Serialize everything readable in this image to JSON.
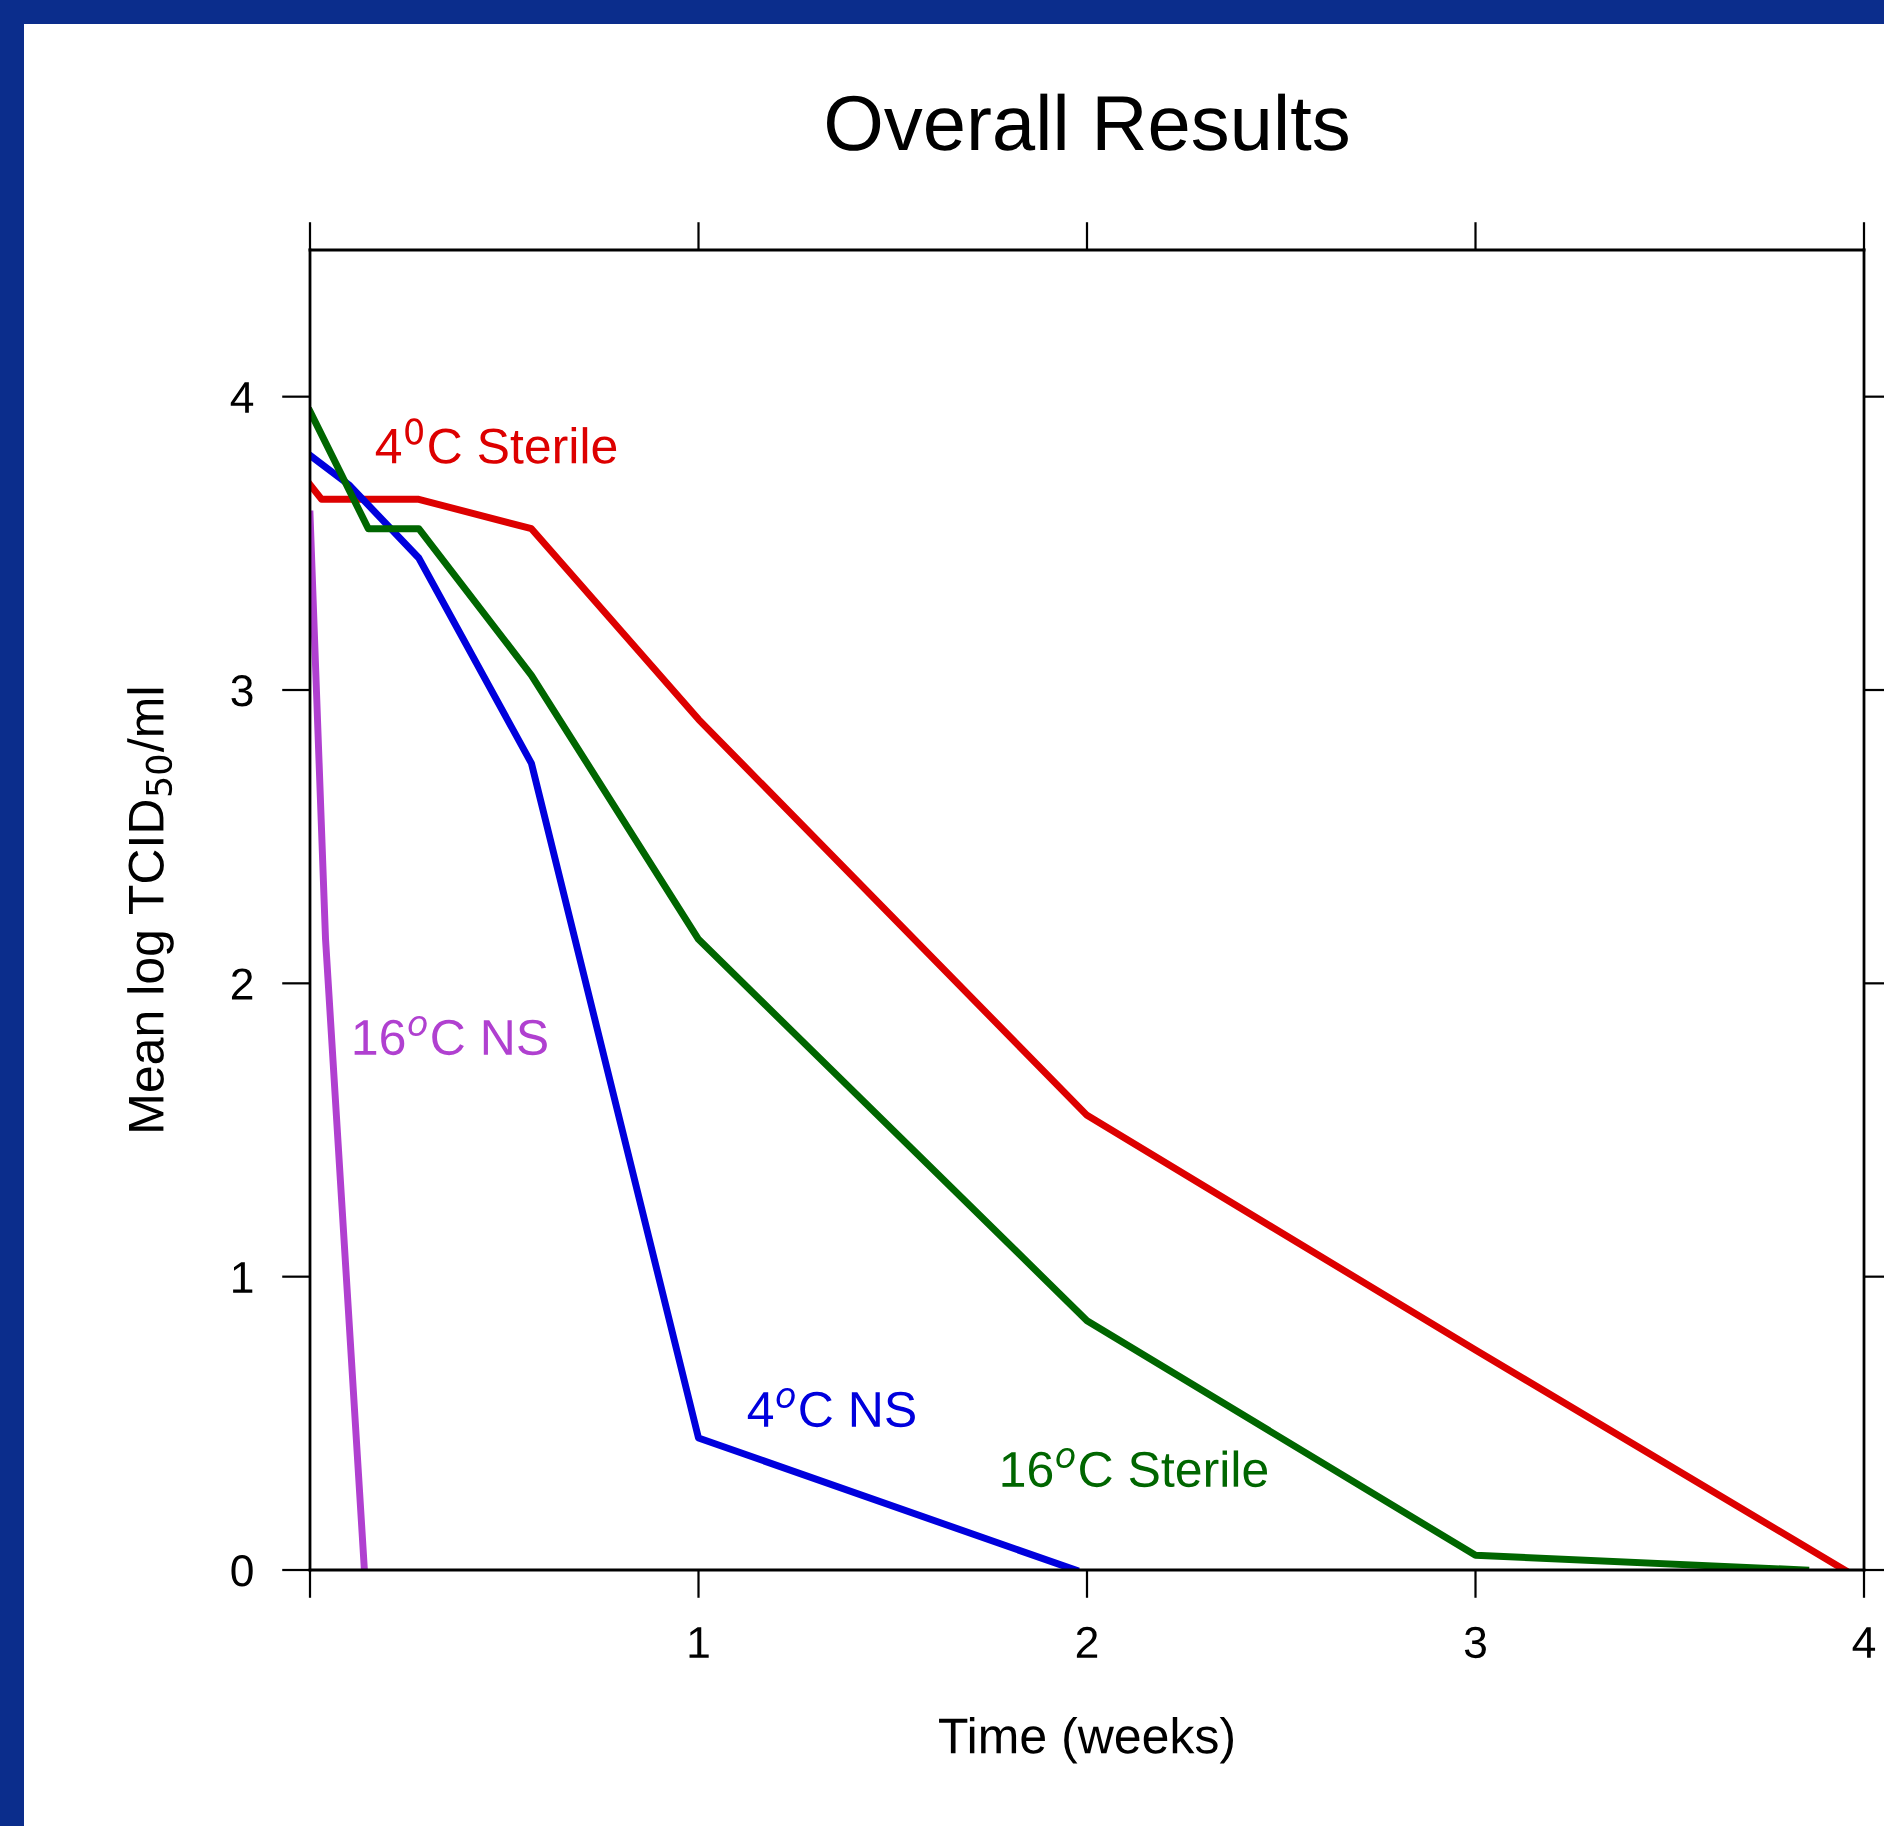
{
  "chart_data": {
    "type": "line",
    "title": "Overall Results",
    "xlabel": "Time (weeks)",
    "ylabel": "Mean log TCID$_{50}$/ml",
    "xlim": [
      0,
      4
    ],
    "ylim": [
      0,
      4.5
    ],
    "xticks": [
      {
        "value": 0,
        "label": null
      },
      1,
      2,
      3,
      4
    ],
    "yticks": [
      0,
      1,
      2,
      3,
      4
    ],
    "grid": false,
    "legend": false,
    "marker": "none",
    "line_style": "solid",
    "series": [
      {
        "name": "4$^{0}$C Sterile",
        "color": "#dd0000",
        "x": [
          0,
          0.03,
          0.28,
          0.57,
          1,
          2,
          3,
          3.95
        ],
        "values": [
          3.7,
          3.65,
          3.65,
          3.55,
          2.9,
          1.55,
          0.75,
          0
        ]
      },
      {
        "name": "4$^{o}$C NS",
        "color": "#0000dd",
        "x": [
          0,
          0.1,
          0.28,
          0.57,
          1,
          1.97
        ],
        "values": [
          3.8,
          3.7,
          3.45,
          2.75,
          0.45,
          0
        ]
      },
      {
        "name": "16$^{o}$C NS",
        "color": "#b040d0",
        "x": [
          0,
          0.04,
          0.14
        ],
        "values": [
          3.6,
          2.15,
          0
        ]
      },
      {
        "name": "16$^{o}$C Sterile",
        "color": "#006600",
        "x": [
          0,
          0.15,
          0.28,
          0.57,
          1,
          2,
          3,
          3.85
        ],
        "values": [
          3.95,
          3.55,
          3.55,
          3.05,
          2.15,
          0.85,
          0.05,
          0
        ]
      }
    ]
  }
}
